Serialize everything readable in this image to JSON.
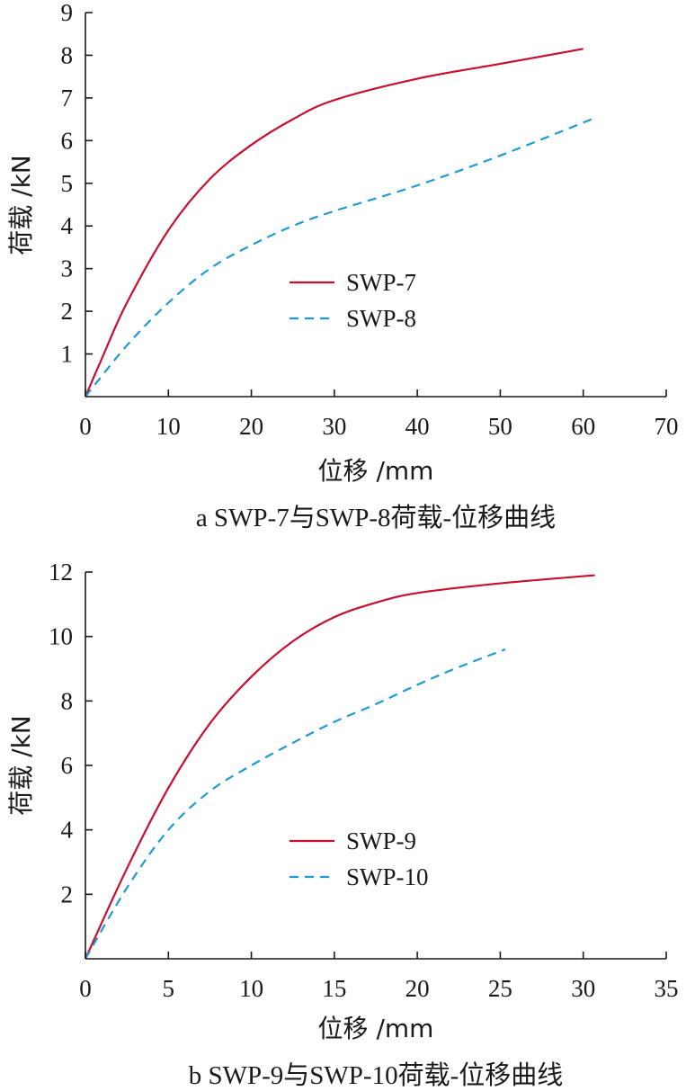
{
  "chart_data": [
    {
      "type": "line",
      "caption": "a SWP-7与SWP-8荷载-位移曲线",
      "xlabel": "位移 /mm",
      "ylabel": "荷载 /kN",
      "xlim": [
        0,
        70
      ],
      "ylim": [
        0,
        9
      ],
      "xticks": [
        0,
        10,
        20,
        30,
        40,
        50,
        60,
        70
      ],
      "yticks": [
        1,
        2,
        3,
        4,
        5,
        6,
        7,
        8,
        9
      ],
      "x_tick_labels": [
        "0",
        "10",
        "20",
        "30",
        "40",
        "50",
        "60",
        "70"
      ],
      "y_tick_labels": [
        "1",
        "2",
        "3",
        "4",
        "5",
        "6",
        "7",
        "8",
        "9"
      ],
      "legend_position": "center",
      "series": [
        {
          "name": "SWP-7",
          "color": "#c8102e",
          "dash": "solid",
          "x": [
            0,
            2,
            5,
            10,
            15,
            20,
            25,
            30,
            40,
            50,
            60
          ],
          "y": [
            0,
            0.9,
            2.2,
            3.9,
            5.1,
            5.9,
            6.5,
            6.95,
            7.45,
            7.8,
            8.15
          ]
        },
        {
          "name": "SWP-8",
          "color": "#1e9bd7",
          "dash": "dashed",
          "x": [
            0,
            5,
            10,
            15,
            20,
            25,
            30,
            40,
            50,
            61
          ],
          "y": [
            0,
            1.2,
            2.2,
            3.0,
            3.55,
            4.0,
            4.35,
            4.95,
            5.65,
            6.5
          ]
        }
      ]
    },
    {
      "type": "line",
      "caption": "b SWP-9与SWP-10荷载-位移曲线",
      "xlabel": "位移 /mm",
      "ylabel": "荷载 /kN",
      "xlim": [
        0,
        35
      ],
      "ylim": [
        0,
        12
      ],
      "xticks": [
        0,
        5,
        10,
        15,
        20,
        25,
        30,
        35
      ],
      "yticks": [
        2,
        4,
        6,
        8,
        10,
        12
      ],
      "x_tick_labels": [
        "0",
        "5",
        "10",
        "15",
        "20",
        "25",
        "30",
        "35"
      ],
      "y_tick_labels": [
        "2",
        "4",
        "6",
        "8",
        "10",
        "12"
      ],
      "legend_position": "lower-center",
      "series": [
        {
          "name": "SWP-9",
          "color": "#c8102e",
          "dash": "solid",
          "x": [
            0,
            2.5,
            5,
            7.5,
            10,
            12.5,
            15,
            17.5,
            20,
            25,
            30.7
          ],
          "y": [
            0,
            2.8,
            5.3,
            7.3,
            8.75,
            9.85,
            10.6,
            11.05,
            11.35,
            11.65,
            11.9
          ]
        },
        {
          "name": "SWP-10",
          "color": "#1e9bd7",
          "dash": "dashed",
          "x": [
            0,
            2.5,
            5,
            7.5,
            10,
            12.5,
            15,
            17.5,
            20,
            22.5,
            25.3
          ],
          "y": [
            0,
            2.2,
            4.0,
            5.2,
            6.0,
            6.7,
            7.35,
            7.9,
            8.5,
            9.05,
            9.6
          ]
        }
      ]
    }
  ]
}
